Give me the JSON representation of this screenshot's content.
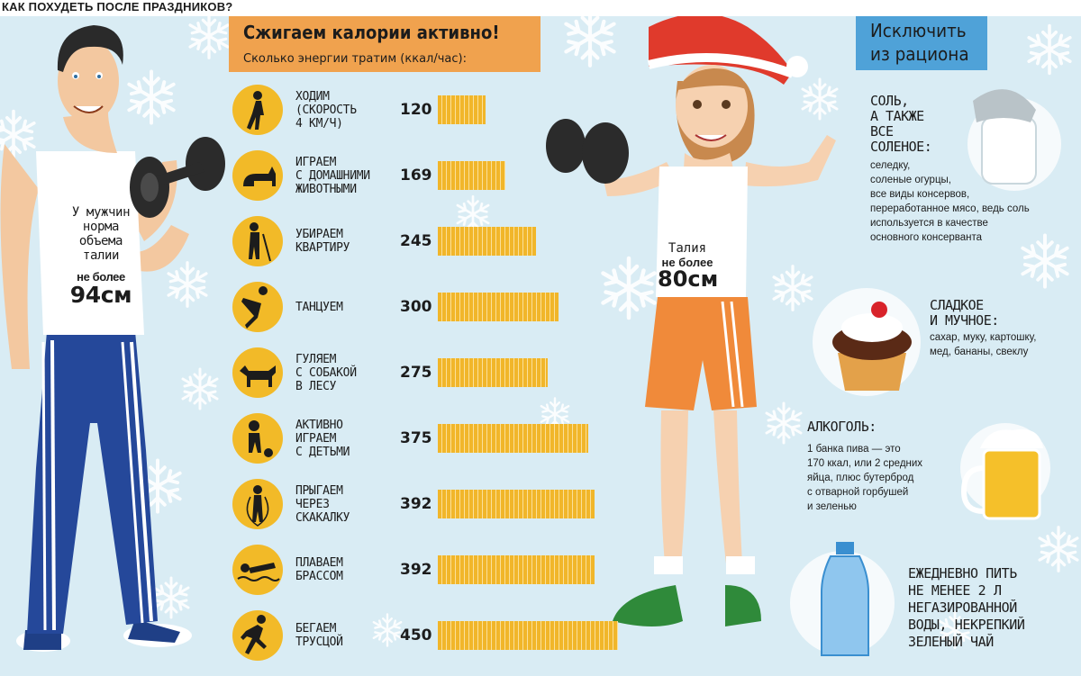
{
  "page_title": "КАК ПОХУДЕТЬ ПОСЛЕ ПРАЗДНИКОВ?",
  "calories_section": {
    "title": "Сжигаем калории активно!",
    "subtitle": "Сколько энергии тратим (ккал/час):"
  },
  "chart_data": {
    "type": "bar",
    "orientation": "horizontal",
    "title": "Сжигаем калории активно!",
    "subtitle": "Сколько энергии тратим (ккал/час):",
    "categories": [
      "ходим (скорость 4 км/ч)",
      "играем с домашними животными",
      "убираем квартиру",
      "танцуем",
      "гуляем с собакой в лесу",
      "активно играем с детьми",
      "прыгаем через скакалку",
      "плаваем брассом",
      "бегаем трусцой"
    ],
    "labels": [
      "ходим\n(скорость\n4 км/ч)",
      "играем\nс домашними\nживотными",
      "убираем\nквартиру",
      "танцуем",
      "гуляем\nс собакой\nв лесу",
      "активно\nиграем\nс детьми",
      "прыгаем\nчерез\nскакалку",
      "плаваем\nбрассом",
      "бегаем\nтрусцой"
    ],
    "icons": [
      "walking-person-icon",
      "cat-icon",
      "mopping-person-icon",
      "dancing-person-icon",
      "dog-icon",
      "child-ball-icon",
      "jump-rope-icon",
      "swimmer-icon",
      "runner-icon"
    ],
    "values": [
      120,
      169,
      245,
      300,
      275,
      375,
      392,
      392,
      450
    ],
    "bar_color": "#f1b62a",
    "icon_bg_color": "#f2ba28"
  },
  "man": {
    "label": "У мужчин\nнорма\nобъема\nталии",
    "limit_prefix": "не более",
    "limit_value": "94см"
  },
  "woman": {
    "label": "Талия",
    "limit_prefix": "не более",
    "limit_value": "80см"
  },
  "exclude_section": {
    "title_line1": "Исключить",
    "title_line2": "из рациона",
    "color": "#4fa2d8",
    "items": [
      {
        "head": "соль,\nа также\nвсе\nсоленое:",
        "body": "селедку,\nсоленые огурцы,\nвсе виды консервов,\nпереработанное мясо, ведь соль\nиспользуется в качестве\nосновного консерванта",
        "icon": "salt-shaker-icon"
      },
      {
        "head": "сладкое\nи мучное:",
        "body": "сахар, муку, картошку,\nмед, бананы, свеклу",
        "icon": "cupcake-icon"
      },
      {
        "head": "алкоголь:",
        "body": "1 банка пива — это\n170 ккал, или 2 средних\nяйца, плюс бутерброд\nс отварной горбушей\nи зеленью",
        "icon": "beer-mug-icon"
      }
    ]
  },
  "water_tip": {
    "text": "Ежедневно пить\nне менее 2 л\nнегазированной\nводы, некрепкий\nзеленый чай",
    "icon": "water-bottle-icon"
  }
}
